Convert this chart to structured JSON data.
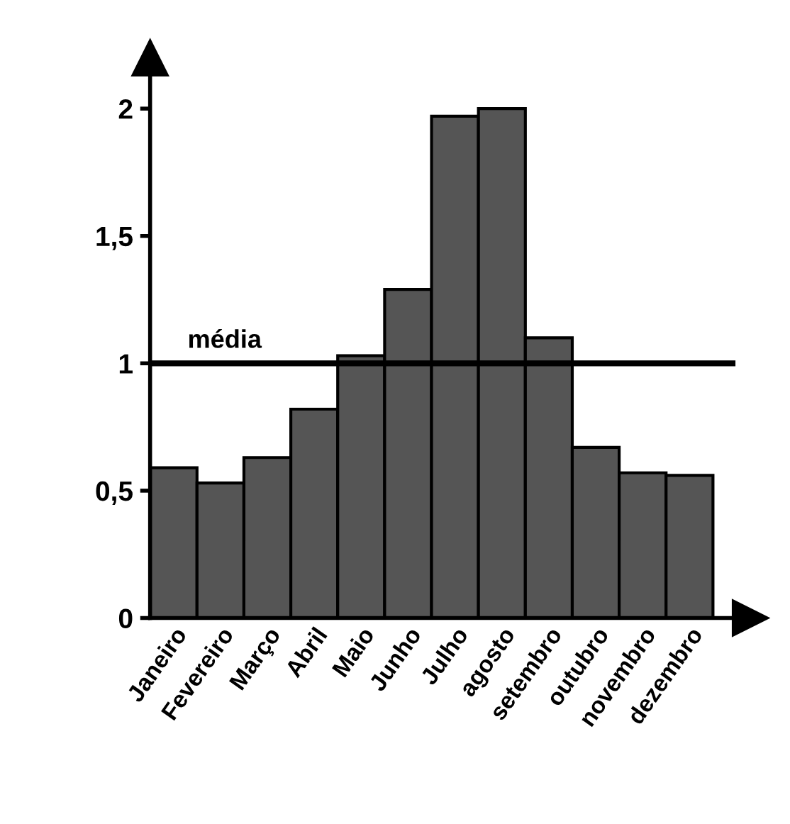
{
  "chart_data": {
    "type": "bar",
    "categories": [
      "Janeiro",
      "Fevereiro",
      "Março",
      "Abril",
      "Maio",
      "Junho",
      "Julho",
      "agosto",
      "setembro",
      "outubro",
      "novembro",
      "dezembro"
    ],
    "values": [
      0.59,
      0.53,
      0.63,
      0.82,
      1.03,
      1.29,
      1.97,
      2.0,
      1.1,
      0.67,
      0.57,
      0.56
    ],
    "color": "#555555",
    "ylim": [
      0,
      2.2
    ],
    "yticks": [
      0,
      {
        "value": 0.5,
        "label": "0,5"
      },
      1,
      {
        "value": 1.5,
        "label": "1,5"
      },
      2
    ],
    "ref_lines": [
      {
        "axis": "y",
        "value": 1,
        "label": "média",
        "color": "#000000"
      }
    ],
    "grid": false,
    "legend": false
  }
}
